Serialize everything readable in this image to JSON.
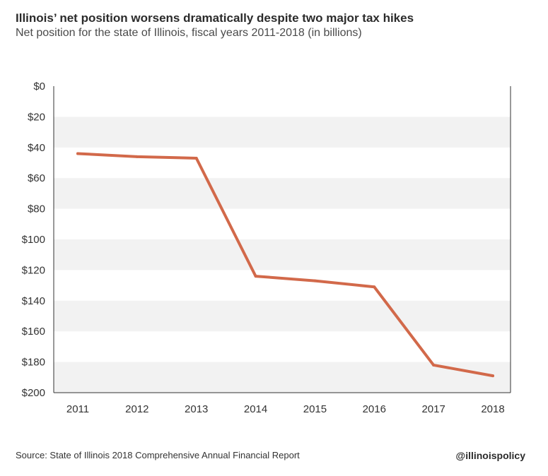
{
  "header": {
    "title": "Illinois’ net position worsens dramatically despite two major tax hikes",
    "subtitle": "Net position for the state of Illinois, fiscal years 2011-2018 (in billions)"
  },
  "footer": {
    "source": "Source: State of Illinois 2018 Comprehensive Annual Financial Report",
    "handle": "@illinoispolicy"
  },
  "colors": {
    "line": "#d2694a",
    "band": "#f2f2f2",
    "axis": "#333333"
  },
  "chart_data": {
    "type": "line",
    "title": "Illinois’ net position worsens dramatically despite two major tax hikes",
    "subtitle": "Net position for the state of Illinois, fiscal years 2011-2018 (in billions)",
    "xlabel": "",
    "ylabel": "",
    "categories": [
      "2011",
      "2012",
      "2013",
      "2014",
      "2015",
      "2016",
      "2017",
      "2018"
    ],
    "series": [
      {
        "name": "Net position (deficit, $ billions)",
        "values": [
          44,
          46,
          47,
          124,
          127,
          131,
          182,
          189
        ]
      }
    ],
    "y_ticks": [
      0,
      20,
      40,
      60,
      80,
      100,
      120,
      140,
      160,
      180,
      200
    ],
    "y_tick_labels": [
      "$0",
      "$20",
      "$40",
      "$60",
      "$80",
      "$100",
      "$120",
      "$140",
      "$160",
      "$180",
      "$200"
    ],
    "ylim": [
      0,
      200
    ],
    "y_inverted": true,
    "grid": "alternating horizontal bands",
    "legend": "none"
  }
}
